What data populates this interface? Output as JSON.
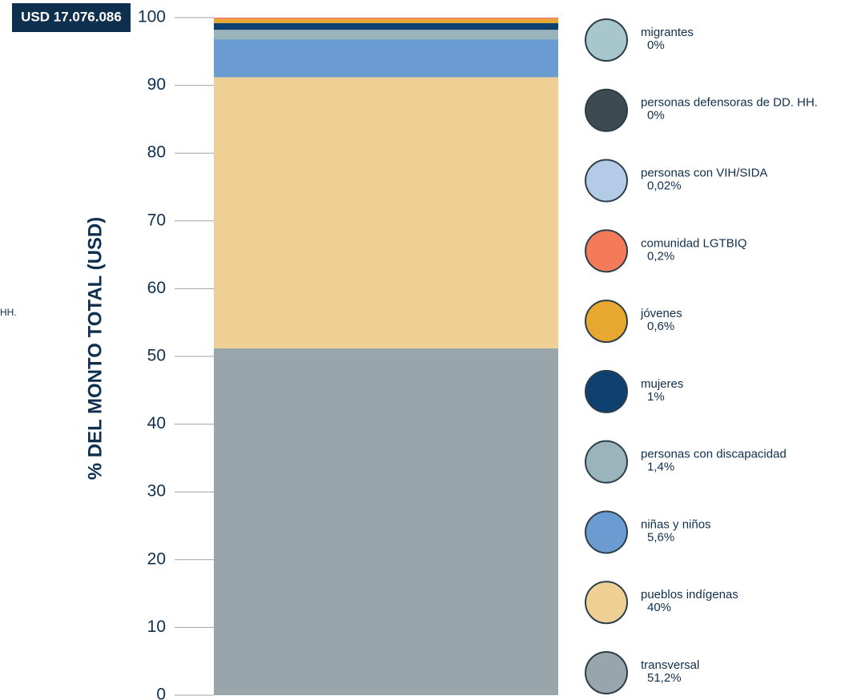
{
  "chart_data": {
    "type": "stacked_bar",
    "title": "USD 17.076.086",
    "y_label": "% DEL MONTO TOTAL (USD)",
    "stray_text": "HH.",
    "ylim": [
      0,
      100
    ],
    "yticks": [
      0,
      10,
      20,
      30,
      40,
      50,
      60,
      70,
      80,
      90,
      100
    ],
    "series": [
      {
        "name": "transversal",
        "color": "#98a5aa",
        "values": [
          51.2
        ],
        "value_labels": [
          "51,2%"
        ]
      },
      {
        "name": "pueblos indígenas",
        "color": "#eed094",
        "values": [
          40
        ],
        "value_labels": [
          "40%"
        ]
      },
      {
        "name": "niñas y niños",
        "color": "#6a9bd1",
        "values": [
          5.6
        ],
        "value_labels": [
          "5,6%"
        ]
      },
      {
        "name": "personas con discapacidad",
        "color": "#9bb3ba",
        "values": [
          1.4
        ],
        "value_labels": [
          "1,4%"
        ]
      },
      {
        "name": "mujeres",
        "color": "#0e4170",
        "values": [
          1
        ],
        "value_labels": [
          "1%"
        ]
      },
      {
        "name": "jóvenes",
        "color": "#e8a830",
        "values": [
          0.6
        ],
        "value_labels": [
          "0,6%"
        ]
      },
      {
        "name": "comunidad LGTBIQ",
        "color": "#f47b5a",
        "values": [
          0.2
        ],
        "value_labels": [
          "0,2%"
        ]
      },
      {
        "name": "personas con VIH/SIDA",
        "color": "#b3cbe6",
        "values": [
          0.02
        ],
        "value_labels": [
          "0,02%"
        ]
      },
      {
        "name": "personas defensoras de DD. HH.",
        "color": "#3d4a4f",
        "values": [
          0
        ],
        "value_labels": [
          "0%"
        ]
      },
      {
        "name": "migrantes",
        "color": "#a8c7cc",
        "values": [
          0
        ],
        "value_labels": [
          "0%"
        ]
      }
    ]
  }
}
